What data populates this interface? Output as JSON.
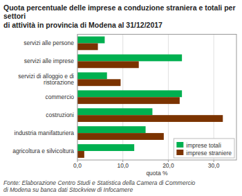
{
  "chart_data": {
    "type": "bar",
    "orientation": "horizontal",
    "title": "Quota percentuale delle imprese a conduzione straniera e totali per settori\ndi attività in provincia di Modena al 31/12/2017",
    "xlabel": "quota %",
    "categories": [
      "agricoltura e silvicoltura",
      "industria manifatturiera",
      "costruzioni",
      "commercio",
      "servizi di alloggio e di ristorazione",
      "servizi alle imprese",
      "servizi alle persone"
    ],
    "series": [
      {
        "name": "imprese totali",
        "color": "#00b050",
        "values": [
          12.5,
          15.0,
          16.5,
          23.0,
          6.5,
          23.0,
          6.0
        ]
      },
      {
        "name": "imprese straniere",
        "color": "#7b3300",
        "values": [
          1.5,
          19.0,
          32.0,
          22.5,
          9.5,
          13.5,
          4.5
        ]
      }
    ],
    "xlim": [
      0,
      35
    ],
    "xticks": [
      {
        "value": 0.0,
        "label": "0,0"
      },
      {
        "value": 10.0,
        "label": "10,0"
      },
      {
        "value": 20.0,
        "label": "20,0"
      },
      {
        "value": 30.0,
        "label": "30,0"
      }
    ],
    "grid": true,
    "legend": "lower right",
    "annotations": [
      "Fonte: Elaborazione Centro Studi e Statistica  della Camera di Commercio\ndi Modena su banca dati Stockview di Infocamere"
    ]
  }
}
